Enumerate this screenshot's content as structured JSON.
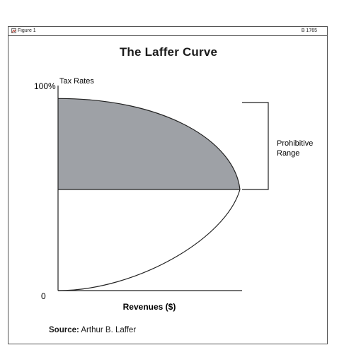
{
  "header": {
    "label": "Figure 1",
    "code": "B 1765"
  },
  "colors": {
    "shade": "#9ea1a6",
    "line": "#222222",
    "frame": "#555555"
  },
  "chart_data": {
    "type": "area",
    "title": "The Laffer Curve",
    "xlabel": "Revenues ($)",
    "ylabel": "Tax Rates",
    "y_ticks": [
      "100%",
      "0"
    ],
    "ylim": [
      0,
      100
    ],
    "bracket_label": "Prohibitive Range",
    "bracket_range": [
      50,
      100
    ],
    "curve": {
      "peak_rate": 50,
      "max_rate": 95,
      "shaded_region": "above the revenue-maximizing rate"
    }
  },
  "source": {
    "label": "Source:",
    "text": "Arthur B. Laffer"
  }
}
